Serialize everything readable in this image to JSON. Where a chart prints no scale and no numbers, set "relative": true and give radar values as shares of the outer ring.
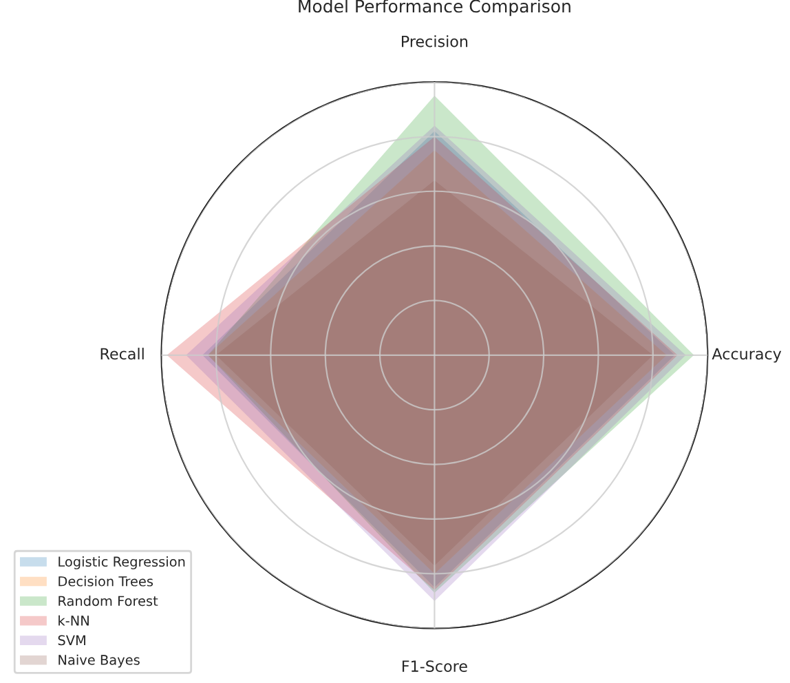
{
  "chart_data": {
    "type": "radar",
    "title": "Model Performance Comparison",
    "relative": true,
    "categories": [
      "Precision",
      "Accuracy",
      "F1-Score",
      "Recall"
    ],
    "series": [
      {
        "name": "Logistic Regression",
        "color": "#1f77b4",
        "values": [
          0.82,
          0.88,
          0.85,
          0.85
        ]
      },
      {
        "name": "Decision Trees",
        "color": "#ff7f0e",
        "values": [
          0.75,
          0.85,
          0.8,
          0.83
        ]
      },
      {
        "name": "Random Forest",
        "color": "#2ca02c",
        "values": [
          0.95,
          0.95,
          0.87,
          0.83
        ]
      },
      {
        "name": "k-NN",
        "color": "#d62728",
        "values": [
          0.8,
          0.89,
          0.86,
          0.98
        ]
      },
      {
        "name": "SVM",
        "color": "#9467bd",
        "values": [
          0.84,
          0.92,
          0.9,
          0.91
        ]
      },
      {
        "name": "Naive Bayes",
        "color": "#8c564b",
        "values": [
          0.64,
          0.8,
          0.77,
          0.8
        ]
      }
    ],
    "grid": true,
    "legend": "bottom left"
  }
}
